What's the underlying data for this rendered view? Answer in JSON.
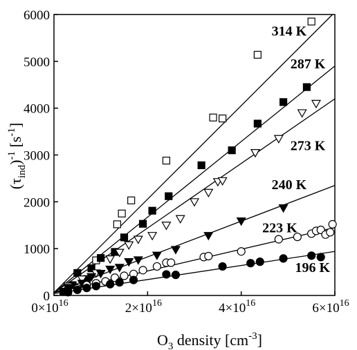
{
  "chart_data": {
    "type": "scatter",
    "xlabel": {
      "base": "O",
      "sub": "3",
      "rest": " density [cm",
      "sup": "-3",
      "close": "]"
    },
    "ylabel": {
      "open": "(τ",
      "sub": "ind",
      "mid": ")",
      "sup": "-1",
      "rest": " [s",
      "sup2": "-1",
      "close": "]"
    },
    "xlim": [
      0,
      6e+16
    ],
    "ylim": [
      0,
      6000
    ],
    "x_ticks": [
      {
        "value": 0,
        "mantissa": "0×10",
        "exp": "16"
      },
      {
        "value": 2e+16,
        "mantissa": "2×10",
        "exp": "16"
      },
      {
        "value": 4e+16,
        "mantissa": "4×10",
        "exp": "16"
      },
      {
        "value": 6e+16,
        "mantissa": "6×10",
        "exp": "16"
      }
    ],
    "y_ticks": [
      0,
      1000,
      2000,
      3000,
      4000,
      5000,
      6000
    ],
    "series": [
      {
        "name": "314 K",
        "marker": "square-open",
        "fit": {
          "x": [
            0,
            5.95e+16
          ],
          "y": [
            60,
            6000
          ]
        },
        "x": [
          3000000000000000.0,
          9000000000000000.0,
          1.35e+16,
          1.45e+16,
          1.65e+16,
          2.4e+16,
          3.4e+16,
          3.6e+16,
          4.35e+16,
          5.5e+16
        ],
        "y": [
          100,
          750,
          1520,
          1750,
          2030,
          2880,
          3800,
          3780,
          5140,
          5850
        ]
      },
      {
        "name": "287 K",
        "marker": "square-filled",
        "fit": {
          "x": [
            0,
            6e+16
          ],
          "y": [
            60,
            4900
          ]
        },
        "x": [
          2000000000000000.0,
          4000000000000000.0,
          5000000000000000.0,
          7000000000000000.0,
          8000000000000000.0,
          1e+16,
          1.3e+16,
          1.5e+16,
          1.9e+16,
          2.1e+16,
          2.45e+16,
          3.15e+16,
          3.8e+16,
          4.35e+16,
          4.9e+16,
          5.4e+16
        ],
        "y": [
          80,
          220,
          480,
          350,
          580,
          800,
          930,
          1240,
          1530,
          1810,
          2120,
          2780,
          3100,
          3670,
          4130,
          4450
        ]
      },
      {
        "name": "273 K",
        "marker": "triangle-down-open",
        "fit": {
          "x": [
            0,
            6e+16
          ],
          "y": [
            60,
            4200
          ]
        },
        "x": [
          3000000000000000.0,
          6000000000000000.0,
          9000000000000000.0,
          1.2e+16,
          1.4e+16,
          1.6e+16,
          1.8e+16,
          2.1e+16,
          2.4e+16,
          2.7e+16,
          3e+16,
          3.3e+16,
          3.5e+16,
          3.6e+16,
          4.3e+16,
          4.8e+16,
          5.3e+16,
          5.6e+16
        ],
        "y": [
          200,
          350,
          480,
          780,
          920,
          1080,
          1200,
          1280,
          1500,
          1640,
          2000,
          2200,
          2430,
          2450,
          3050,
          3350,
          3900,
          4100
        ]
      },
      {
        "name": "240 K",
        "marker": "triangle-down-filled",
        "fit": {
          "x": [
            0,
            6e+16
          ],
          "y": [
            60,
            2350
          ]
        },
        "x": [
          3000000000000000.0,
          6000000000000000.0,
          8000000000000000.0,
          1e+16,
          1.2e+16,
          1.4e+16,
          1.6e+16,
          1.8e+16,
          2.2e+16,
          2.6e+16,
          3.3e+16,
          4e+16,
          4.9e+16
        ],
        "y": [
          170,
          260,
          400,
          470,
          560,
          600,
          720,
          760,
          860,
          980,
          1280,
          1590,
          1870
        ]
      },
      {
        "name": "223 K",
        "marker": "circle-open",
        "fit": {
          "x": [
            0,
            6e+16
          ],
          "y": [
            60,
            1450
          ]
        },
        "x": [
          3000000000000000.0,
          5000000000000000.0,
          7000000000000000.0,
          9000000000000000.0,
          1.1e+16,
          1.3e+16,
          1.5e+16,
          1.7e+16,
          1.9e+16,
          2.2e+16,
          2.4e+16,
          2.5e+16,
          3.2e+16,
          3.3e+16,
          4e+16,
          4.8e+16,
          5.2e+16,
          5.5e+16,
          5.6e+16,
          5.7e+16,
          5.8e+16,
          5.9e+16,
          5.95e+16
        ],
        "y": [
          80,
          150,
          220,
          260,
          300,
          380,
          420,
          460,
          540,
          620,
          700,
          700,
          820,
          840,
          940,
          1200,
          1250,
          1320,
          1380,
          1400,
          1300,
          1350,
          1520
        ]
      },
      {
        "name": "196 K",
        "marker": "circle-filled",
        "fit": {
          "x": [
            0,
            6e+16
          ],
          "y": [
            40,
            940
          ]
        },
        "x": [
          3000000000000000.0,
          5000000000000000.0,
          7000000000000000.0,
          9000000000000000.0,
          1.2e+16,
          1.4e+16,
          1.7e+16,
          2.4e+16,
          2.6e+16,
          3.6e+16,
          4.2e+16,
          4.4e+16,
          4.9e+16,
          5.5e+16,
          5.7e+16
        ],
        "y": [
          70,
          120,
          160,
          200,
          240,
          280,
          330,
          450,
          440,
          620,
          690,
          720,
          790,
          850,
          820
        ]
      }
    ],
    "series_labels": [
      {
        "series": "314 K",
        "x": 4.65e+16,
        "y": 5550
      },
      {
        "series": "287 K",
        "x": 5.05e+16,
        "y": 4850
      },
      {
        "series": "273 K",
        "x": 5.05e+16,
        "y": 3100
      },
      {
        "series": "240 K",
        "x": 4.65e+16,
        "y": 2270
      },
      {
        "series": "223 K",
        "x": 4.45e+16,
        "y": 1350
      },
      {
        "series": "196 K",
        "x": 5.15e+16,
        "y": 500
      }
    ]
  }
}
